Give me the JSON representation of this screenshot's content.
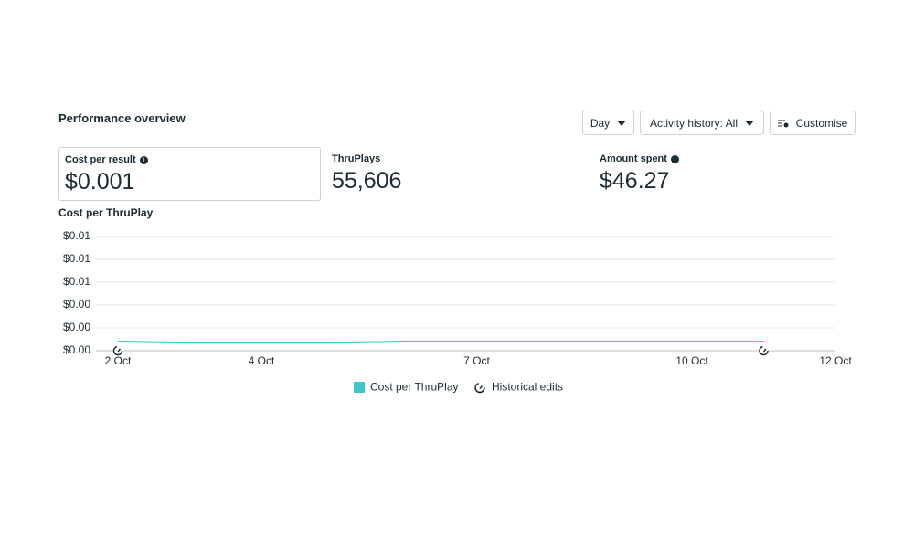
{
  "header": {
    "title": "Performance overview"
  },
  "controls": {
    "day": "Day",
    "activity": "Activity history: All",
    "customise": "Customise"
  },
  "metrics": [
    {
      "label": "Cost per result",
      "value": "$0.001"
    },
    {
      "label": "ThruPlays",
      "value": "55,606"
    },
    {
      "label": "Amount spent",
      "value": "$46.27"
    }
  ],
  "legend_extra": "Historical edits",
  "chart_data": {
    "type": "line",
    "title": "Cost per ThruPlay",
    "categories": [
      "2 Oct",
      null,
      "4 Oct",
      null,
      null,
      "7 Oct",
      null,
      null,
      "10 Oct",
      null,
      "12 Oct"
    ],
    "series": [
      {
        "name": "Cost per ThruPlay",
        "color": "#3cc8c8",
        "values": [
          0.0008,
          0.0007,
          0.0007,
          0.0007,
          0.0008,
          0.0008,
          0.0008,
          0.0008,
          0.0008,
          0.0008,
          null
        ]
      }
    ],
    "ylim": [
      0,
      0.01
    ],
    "yticks": [
      {
        "value": 0,
        "label": "$0.00"
      },
      {
        "value": 0.002,
        "label": "$0.00"
      },
      {
        "value": 0.004,
        "label": "$0.00"
      },
      {
        "value": 0.006,
        "label": "$0.01"
      },
      {
        "value": 0.008,
        "label": "$0.01"
      },
      {
        "value": 0.01,
        "label": "$0.01"
      }
    ],
    "grid": true
  }
}
